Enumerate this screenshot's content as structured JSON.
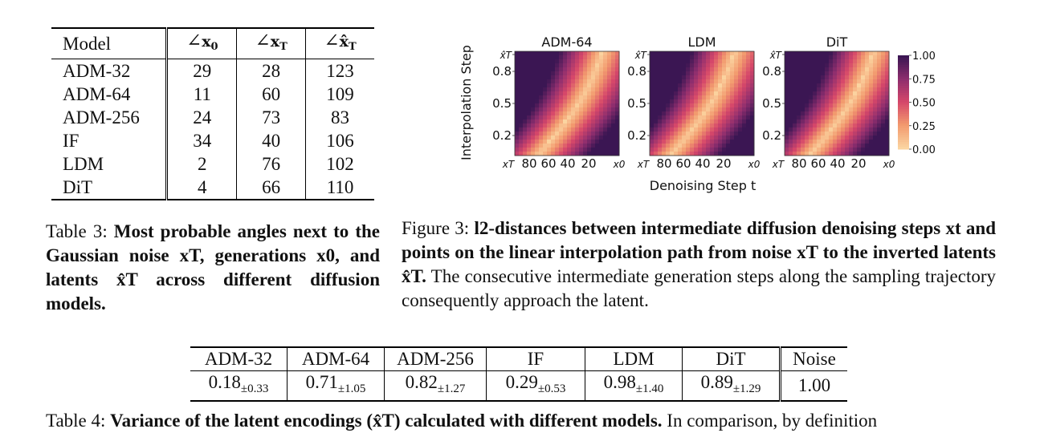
{
  "table3": {
    "headers": [
      "Model",
      "∠x0",
      "∠xT",
      "∠x̂T"
    ],
    "rows": [
      [
        "ADM-32",
        "29",
        "28",
        "123"
      ],
      [
        "ADM-64",
        "11",
        "60",
        "109"
      ],
      [
        "ADM-256",
        "24",
        "73",
        "83"
      ],
      [
        "IF",
        "34",
        "40",
        "106"
      ],
      [
        "LDM",
        "2",
        "76",
        "102"
      ],
      [
        "DiT",
        "4",
        "66",
        "110"
      ]
    ],
    "caption_label": "Table 3: ",
    "caption_bold": "Most probable angles next to the Gaussian noise xT, generations x0, and latents x̂T across different diffusion models."
  },
  "figure3": {
    "caption_label": "Figure 3: ",
    "caption_bold": "l2-distances between intermediate diffusion denoising steps xt and points on the linear interpolation path from noise xT to the inverted latents x̂T.",
    "caption_rest": " The consecutive intermediate generation steps along the sampling trajectory consequently approach the latent.",
    "ylabel": "Interpolation Step",
    "xlabel": "Denoising Step t",
    "panel_titles": [
      "ADM-64",
      "LDM",
      "DiT"
    ],
    "y_ticks": [
      "x̂T",
      "0.8",
      "0.5",
      "0.2"
    ],
    "x_ticks": [
      "xT",
      "80",
      "60",
      "40",
      "20",
      "x0"
    ],
    "colorbar_ticks": [
      "1.00",
      "0.75",
      "0.50",
      "0.25",
      "0.00"
    ]
  },
  "chart_data": {
    "type": "heatmap",
    "title": "",
    "xlabel": "Denoising Step t",
    "ylabel": "Interpolation Step",
    "panels": [
      "ADM-64",
      "LDM",
      "DiT"
    ],
    "colorbar_range": [
      0.0,
      1.0
    ],
    "colorbar_ticks": [
      0.0,
      0.25,
      0.5,
      0.75,
      1.0
    ],
    "colormap_colors": [
      "#fbd4a0",
      "#f29a6e",
      "#d6476a",
      "#8e2e6e",
      "#3b1653"
    ]
  },
  "table4": {
    "headers": [
      "ADM-32",
      "ADM-64",
      "ADM-256",
      "IF",
      "LDM",
      "DiT",
      "Noise"
    ],
    "values": [
      {
        "v": "0.18",
        "pm": "±0.33"
      },
      {
        "v": "0.71",
        "pm": "±1.05"
      },
      {
        "v": "0.82",
        "pm": "±1.27"
      },
      {
        "v": "0.29",
        "pm": "±0.53"
      },
      {
        "v": "0.98",
        "pm": "±1.40"
      },
      {
        "v": "0.89",
        "pm": "±1.29"
      },
      {
        "v": "1.00",
        "pm": ""
      }
    ],
    "caption_label": "Table 4: ",
    "caption_bold": "Variance of the latent encodings (x̂T) calculated with different models.",
    "caption_rest": " In comparison, by definition"
  }
}
